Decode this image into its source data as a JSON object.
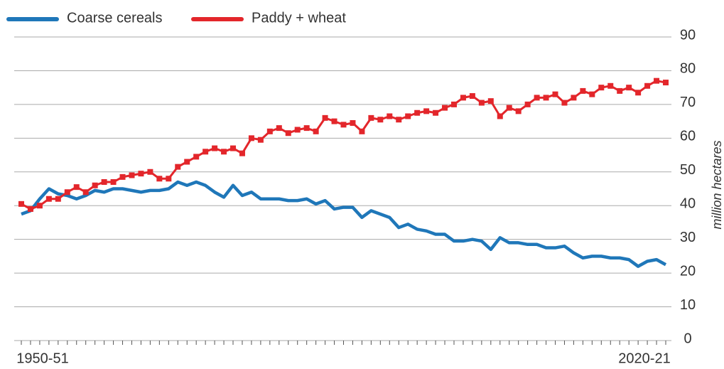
{
  "chart_data": {
    "type": "line",
    "ylabel": "million hectares",
    "categories": [
      "1950-51",
      null,
      null,
      null,
      null,
      null,
      null,
      null,
      null,
      null,
      null,
      null,
      null,
      null,
      null,
      null,
      null,
      null,
      null,
      null,
      null,
      null,
      null,
      null,
      null,
      null,
      null,
      null,
      null,
      null,
      null,
      null,
      null,
      null,
      null,
      null,
      null,
      null,
      null,
      null,
      null,
      null,
      null,
      null,
      null,
      null,
      null,
      null,
      null,
      null,
      null,
      null,
      null,
      null,
      null,
      null,
      null,
      null,
      null,
      null,
      null,
      null,
      null,
      null,
      null,
      null,
      null,
      null,
      null,
      null,
      "2020-21"
    ],
    "series": [
      {
        "name": "Coarse cereals",
        "color": "#1f77b9",
        "values": [
          37.5,
          38.5,
          42,
          45,
          43.5,
          43,
          42,
          43,
          44.5,
          44,
          45,
          45,
          44.5,
          44,
          44.5,
          44.5,
          45,
          47,
          46,
          47,
          46,
          44,
          42.5,
          46,
          43,
          44,
          42,
          42,
          42,
          41.5,
          41.5,
          42,
          40.5,
          41.5,
          39,
          39.5,
          39.5,
          36.5,
          38.5,
          37.5,
          36.5,
          33.5,
          34.5,
          33,
          32.5,
          31.5,
          31.5,
          29.5,
          29.5,
          30,
          29.5,
          27,
          30.5,
          29,
          29,
          28.5,
          28.5,
          27.5,
          27.5,
          28,
          26,
          24.5,
          25,
          25,
          24.5,
          24.5,
          24,
          22,
          23.5,
          24,
          22.5
        ]
      },
      {
        "name": "Paddy + wheat",
        "color": "#e3262b",
        "values": [
          40.5,
          39,
          40,
          42,
          42,
          44,
          45.5,
          44,
          46,
          47,
          47,
          48.5,
          49,
          49.5,
          50,
          48,
          48,
          51.5,
          53,
          54.5,
          56,
          57,
          56,
          57,
          55.5,
          60,
          59.5,
          62,
          63,
          61.5,
          62.5,
          63,
          62,
          66,
          65,
          64,
          64.5,
          62,
          66,
          65.5,
          66.5,
          65.5,
          66.5,
          67.5,
          68,
          67.5,
          69,
          70,
          72,
          72.5,
          70.5,
          71,
          66.5,
          69,
          68,
          70,
          72,
          72,
          73,
          70.5,
          72,
          74,
          73,
          75,
          75.5,
          74,
          75,
          73.5,
          75.5,
          77,
          76.5
        ]
      }
    ],
    "ylim": [
      0,
      90
    ],
    "yticks": [
      0,
      10,
      20,
      30,
      40,
      50,
      60,
      70,
      80,
      90
    ],
    "grid": true
  }
}
